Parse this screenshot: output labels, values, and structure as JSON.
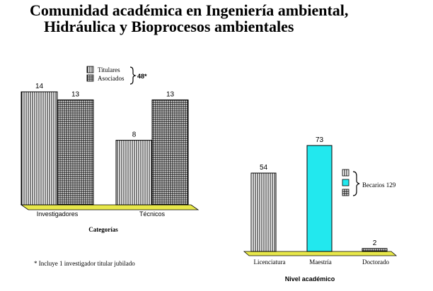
{
  "title": {
    "line1": "Comunidad académica en Ingeniería ambiental,",
    "line2": "Hidráulica y Bioprocesos ambientales"
  },
  "footnote": "* Incluye 1 investigador titular jubilado",
  "colors": {
    "bar_fill": "#ffffff",
    "stroke": "#000000",
    "base": "#e8e84a",
    "becarios": "#22e8ee"
  },
  "chart_data": [
    {
      "type": "bar",
      "title": "",
      "xlabel": "Categorías",
      "ylabel": "",
      "categories": [
        "Investigadores",
        "Técnicos"
      ],
      "series": [
        {
          "name": "Titulares",
          "values": [
            14,
            8
          ],
          "pattern": "vertical-lines"
        },
        {
          "name": "Asociados",
          "values": [
            13,
            13
          ],
          "pattern": "grid"
        }
      ],
      "legend_total": "48*",
      "legend_position": "top-center",
      "ylim": [
        0,
        14
      ]
    },
    {
      "type": "bar",
      "title": "",
      "xlabel": "Nivel académico",
      "ylabel": "",
      "categories": [
        "Licenciatura",
        "Maestría",
        "Doctorado"
      ],
      "values": [
        54,
        73,
        2
      ],
      "patterns": [
        "vertical-lines",
        "solid-cyan",
        "grid"
      ],
      "legend_label": "Becarios 129",
      "legend_position": "right",
      "ylim": [
        0,
        73
      ]
    }
  ]
}
